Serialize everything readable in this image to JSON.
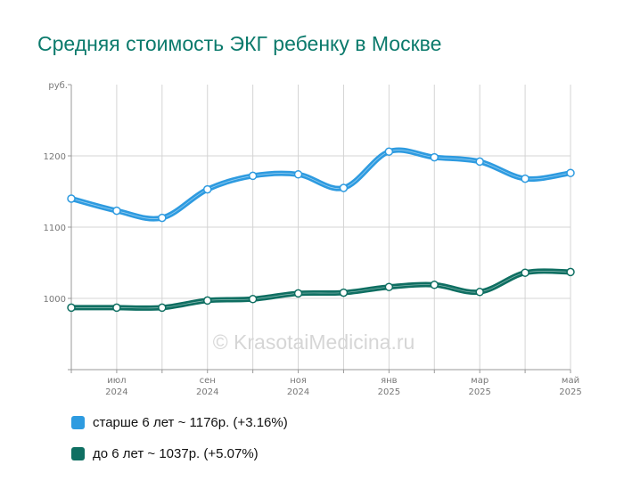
{
  "title": "Средняя стоимость ЭКГ ребенку в Москве",
  "watermark": "© KrasotaiMedicina.ru",
  "colors": {
    "title": "#0b7a6c",
    "older": "#2e9be0",
    "younger": "#0f6f62",
    "grid": "#d4d4d4"
  },
  "chart_data": {
    "type": "line",
    "ylabel": "руб.",
    "ylim": [
      900,
      1300
    ],
    "yticks": [
      1000,
      1100,
      1200
    ],
    "x": [
      "2024-06",
      "2024-07",
      "2024-08",
      "2024-09",
      "2024-10",
      "2024-11",
      "2024-12",
      "2025-01",
      "2025-02",
      "2025-03",
      "2025-04",
      "2025-05"
    ],
    "xtick_labels": [
      {
        "month": "июл",
        "year": "2024"
      },
      {
        "month": "сен",
        "year": "2024"
      },
      {
        "month": "ноя",
        "year": "2024"
      },
      {
        "month": "янв",
        "year": "2025"
      },
      {
        "month": "мар",
        "year": "2025"
      },
      {
        "month": "май",
        "year": "2025"
      }
    ],
    "grid": true,
    "legend_position": "bottom",
    "series": [
      {
        "name": "старше 6 лет ~ 1176р. (+3.16%)",
        "values": [
          1140,
          1123,
          1113,
          1153,
          1172,
          1174,
          1155,
          1206,
          1198,
          1192,
          1168,
          1176
        ]
      },
      {
        "name": "до 6 лет ~ 1037р. (+5.07%)",
        "values": [
          987,
          987,
          987,
          997,
          999,
          1007,
          1008,
          1016,
          1019,
          1009,
          1036,
          1037
        ]
      }
    ]
  }
}
